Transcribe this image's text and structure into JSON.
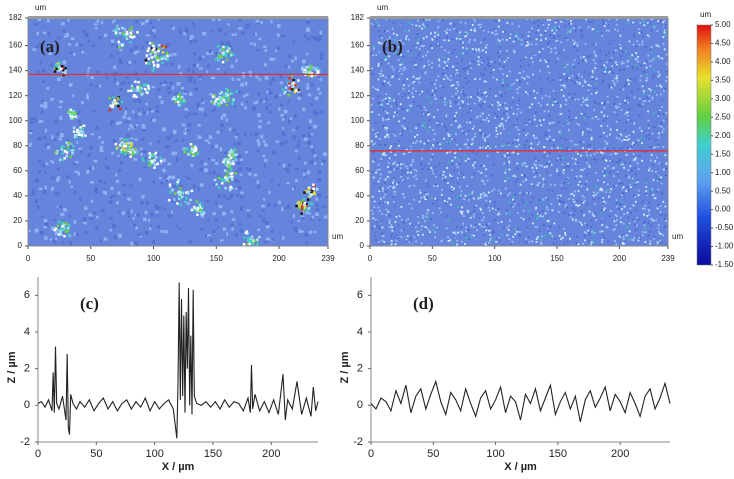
{
  "chart_data": [
    {
      "type": "heatmap",
      "title": "(a)",
      "x_unit": "um",
      "y_unit": "um",
      "xlim": [
        0,
        239
      ],
      "xticks": [
        0,
        50,
        100,
        150,
        200,
        239
      ],
      "ylim": [
        0,
        182
      ],
      "yticks": [
        0,
        20,
        40,
        60,
        80,
        100,
        120,
        140,
        160,
        182
      ],
      "profile_y": 137
    },
    {
      "type": "heatmap",
      "title": "(b)",
      "x_unit": "um",
      "y_unit": "um",
      "xlim": [
        0,
        239
      ],
      "xticks": [
        0,
        50,
        100,
        150,
        200,
        239
      ],
      "ylim": [
        0,
        182
      ],
      "yticks": [
        0,
        20,
        40,
        60,
        80,
        100,
        120,
        140,
        160,
        182
      ],
      "profile_y": 76,
      "colorbar": {
        "unit": "um",
        "lim": [
          -1.5,
          5
        ],
        "ticks": [
          {
            "value": 5,
            "label": "5.00"
          },
          {
            "value": 4.5,
            "label": "4.50"
          },
          {
            "value": 4,
            "label": "4.00"
          },
          {
            "value": 3.5,
            "label": "3.50"
          },
          {
            "value": 3,
            "label": "3.00"
          },
          {
            "value": 2.5,
            "label": "2.50"
          },
          {
            "value": 2,
            "label": "2.00"
          },
          {
            "value": 1.5,
            "label": "1.50"
          },
          {
            "value": 1,
            "label": "1.00"
          },
          {
            "value": 0.5,
            "label": "0.50"
          },
          {
            "value": 0,
            "label": "0.00"
          },
          {
            "value": -0.5,
            "label": "-0.50"
          },
          {
            "value": -1,
            "label": "-1.00"
          },
          {
            "value": -1.5,
            "label": "-1.50"
          }
        ]
      }
    },
    {
      "type": "line",
      "title": "(c)",
      "xlabel": "X / µm",
      "ylabel": "Z / µm",
      "xlim": [
        0,
        240
      ],
      "xticks": [
        0,
        50,
        100,
        150,
        200
      ],
      "ylim": [
        -2,
        7
      ],
      "yticks": [
        -2,
        0,
        2,
        4,
        6
      ],
      "x": [
        0,
        3,
        6,
        9,
        12,
        13,
        14,
        15,
        16,
        18,
        21,
        24,
        25,
        26,
        27,
        28,
        30,
        33,
        36,
        40,
        44,
        48,
        52,
        56,
        60,
        64,
        68,
        72,
        76,
        80,
        84,
        88,
        92,
        96,
        100,
        104,
        108,
        112,
        116,
        119,
        120,
        121,
        122,
        123,
        124,
        125,
        126,
        127,
        128,
        129,
        130,
        131,
        132,
        133,
        134,
        136,
        140,
        144,
        148,
        152,
        156,
        160,
        164,
        168,
        172,
        176,
        180,
        182,
        183,
        184,
        186,
        190,
        194,
        198,
        202,
        206,
        210,
        212,
        214,
        218,
        222,
        226,
        230,
        234,
        236,
        238,
        240
      ],
      "series": [
        {
          "color": "#222222",
          "values": [
            0.1,
            0.2,
            -0.1,
            0.3,
            -0.3,
            1.8,
            -0.4,
            3.2,
            0.1,
            -0.2,
            0.5,
            -0.8,
            2.8,
            -1.2,
            -1.6,
            0.6,
            0.1,
            -0.2,
            0.2,
            -0.1,
            0.3,
            -0.3,
            0.1,
            0.4,
            -0.2,
            0.2,
            -0.3,
            0.1,
            0.3,
            -0.2,
            0.2,
            -0.1,
            0.4,
            -0.3,
            0.2,
            -0.2,
            0.1,
            0.3,
            -0.2,
            -1.8,
            1.2,
            6.7,
            0.3,
            5.8,
            0.5,
            4.9,
            -0.4,
            5.1,
            2.0,
            6.4,
            0.0,
            3.8,
            -0.5,
            6.3,
            0.5,
            0.1,
            0.0,
            0.2,
            -0.1,
            0.2,
            -0.2,
            0.3,
            -0.1,
            0.2,
            0.1,
            -0.3,
            0.4,
            -0.4,
            2.2,
            -0.2,
            0.6,
            -0.3,
            0.2,
            -0.4,
            0.3,
            -0.5,
            1.7,
            -0.8,
            0.3,
            -0.2,
            1.3,
            -0.5,
            0.4,
            -0.6,
            1.0,
            -0.3,
            0.2
          ]
        }
      ]
    },
    {
      "type": "line",
      "title": "(d)",
      "xlabel": "X / µm",
      "ylabel": "Z / µm",
      "xlim": [
        0,
        240
      ],
      "xticks": [
        0,
        50,
        100,
        150,
        200
      ],
      "ylim": [
        -2,
        7
      ],
      "yticks": [
        -2,
        0,
        2,
        4,
        6
      ],
      "x": [
        0,
        4,
        8,
        12,
        16,
        20,
        24,
        28,
        32,
        36,
        40,
        44,
        48,
        52,
        56,
        60,
        64,
        68,
        72,
        76,
        80,
        84,
        88,
        92,
        96,
        100,
        104,
        108,
        112,
        116,
        120,
        124,
        128,
        132,
        136,
        140,
        144,
        148,
        152,
        156,
        160,
        164,
        168,
        172,
        176,
        180,
        184,
        188,
        192,
        196,
        200,
        204,
        208,
        212,
        216,
        220,
        224,
        228,
        232,
        236,
        240
      ],
      "series": [
        {
          "color": "#222222",
          "values": [
            0.1,
            -0.2,
            0.4,
            0.2,
            -0.3,
            0.8,
            0.1,
            1.1,
            -0.4,
            0.5,
            0.9,
            -0.2,
            0.6,
            1.3,
            0.2,
            -0.5,
            0.7,
            0.3,
            -0.3,
            0.9,
            0.1,
            -0.6,
            0.4,
            0.8,
            -0.2,
            0.3,
            1.0,
            -0.4,
            0.5,
            0.2,
            -0.8,
            0.6,
            0.1,
            0.9,
            -0.3,
            0.4,
            1.1,
            -0.5,
            0.2,
            0.7,
            -0.2,
            0.5,
            -0.9,
            0.3,
            0.8,
            -0.1,
            0.4,
            1.0,
            -0.3,
            0.6,
            0.2,
            -0.4,
            0.7,
            0.1,
            -0.6,
            0.5,
            0.9,
            -0.2,
            0.4,
            1.2,
            0.1
          ]
        }
      ]
    }
  ]
}
